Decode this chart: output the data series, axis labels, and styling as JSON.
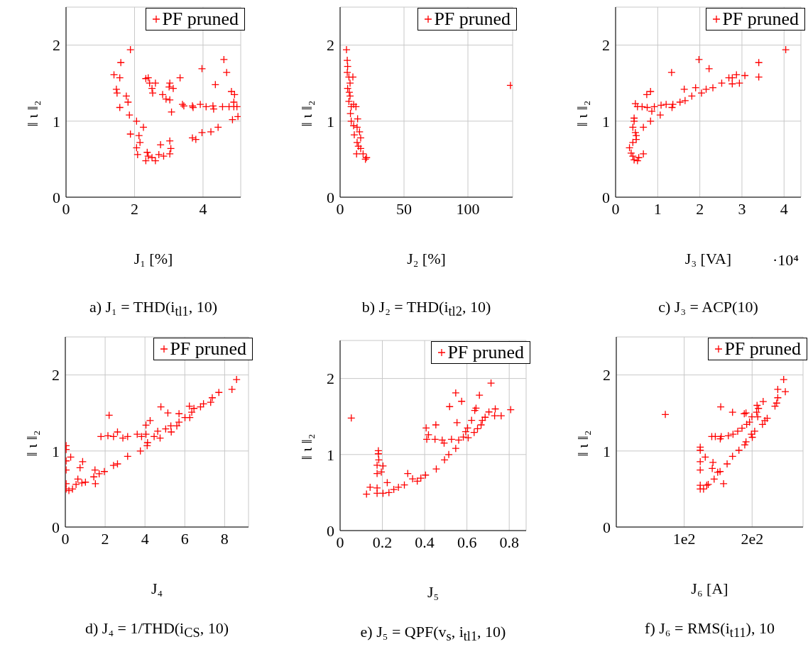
{
  "chart_data": [
    {
      "type": "scatter",
      "xlabel": "J₁ [%]",
      "ylabel": "‖ ι ‖₂",
      "xlim": [
        0,
        5.1
      ],
      "xticks": [
        0,
        2,
        4
      ],
      "ylim": [
        0,
        2.5
      ],
      "yticks": [
        0,
        1,
        2
      ],
      "grid": true,
      "legend": "top right",
      "marker": "cross",
      "annotations": [
        "a) J₁ = THD(i$_{tl1}$, 10)"
      ],
      "series": [
        {
          "name": "PF pruned",
          "color": "#ff0000",
          "x": [
            1.88,
            1.6,
            1.4,
            1.57,
            1.47,
            1.49,
            1.76,
            1.81,
            1.57,
            1.85,
            2.06,
            2.26,
            1.88,
            2.13,
            2.16,
            2.06,
            2.09,
            2.37,
            2.4,
            2.33,
            2.61,
            2.51,
            2.71,
            2.85,
            3.03,
            3.06,
            3.03,
            2.76,
            2.4,
            2.33,
            2.44,
            2.61,
            2.51,
            2.53,
            3.03,
            3.01,
            3.13,
            2.82,
            2.92,
            3.03,
            3.08,
            3.33,
            3.4,
            3.44,
            3.69,
            3.71,
            3.92,
            4.09,
            4.29,
            4.31,
            4.57,
            4.76,
            4.9,
            4.99,
            4.9,
            4.83,
            4.92,
            3.97,
            4.61,
            4.69,
            4.36,
            4.86,
            5.02,
            4.44,
            4.23,
            3.97,
            3.69,
            3.79
          ],
          "values": [
            1.94,
            1.77,
            1.61,
            1.57,
            1.42,
            1.37,
            1.33,
            1.25,
            1.18,
            1.08,
            1.0,
            0.92,
            0.83,
            0.81,
            0.72,
            0.65,
            0.56,
            0.59,
            0.54,
            0.48,
            0.48,
            0.52,
            0.56,
            0.54,
            0.57,
            0.64,
            0.74,
            0.69,
            1.57,
            1.56,
            1.5,
            1.5,
            1.43,
            1.37,
            1.5,
            1.45,
            1.43,
            1.35,
            1.29,
            1.28,
            1.12,
            1.57,
            1.22,
            1.2,
            1.2,
            1.18,
            1.22,
            1.19,
            1.2,
            1.16,
            1.19,
            1.19,
            1.19,
            1.19,
            1.25,
            1.39,
            1.35,
            1.69,
            1.81,
            1.64,
            1.48,
            1.02,
            1.06,
            0.92,
            0.86,
            0.85,
            0.78,
            0.76
          ]
        }
      ]
    },
    {
      "type": "scatter",
      "xlabel": "J₂ [%]",
      "ylabel": "‖ ι ‖₂",
      "xlim": [
        0,
        135
      ],
      "xticks": [
        0,
        50,
        100
      ],
      "ylim": [
        0,
        2.5
      ],
      "yticks": [
        0,
        1,
        2
      ],
      "grid": true,
      "legend": "top right",
      "marker": "cross",
      "annotations": [
        "b) J₂ = THD(i$_{tl2}$, 10)"
      ],
      "series": [
        {
          "name": "PF pruned",
          "color": "#ff0000",
          "x": [
            133.3,
            5.0,
            5.6,
            5.9,
            5.6,
            6.9,
            10.0,
            7.8,
            5.9,
            7.2,
            7.8,
            6.9,
            8.7,
            12.4,
            10.6,
            8.1,
            13.7,
            8.7,
            10.6,
            13.3,
            15.2,
            11.1,
            16.1,
            13.3,
            14.3,
            16.1,
            12.9,
            18.0,
            19.8,
            20.7
          ],
          "values": [
            1.47,
            1.94,
            1.8,
            1.72,
            1.64,
            1.58,
            1.58,
            1.5,
            1.43,
            1.38,
            1.33,
            1.26,
            1.19,
            1.19,
            1.22,
            1.1,
            1.03,
            1.0,
            0.94,
            0.92,
            0.86,
            0.82,
            0.78,
            0.72,
            0.67,
            0.64,
            0.57,
            0.57,
            0.5,
            0.52
          ]
        }
      ]
    },
    {
      "type": "scatter",
      "xlabel": "J₃ [VA]",
      "ylabel": "‖ ι ‖₂",
      "xlim": [
        0,
        4.4
      ],
      "xticks": [
        0,
        1,
        2,
        3,
        4
      ],
      "ylim": [
        0,
        2.5
      ],
      "yticks": [
        0,
        1,
        2
      ],
      "grid": true,
      "legend": "top right",
      "marker": "cross",
      "annotations": [
        "c) J₃ = ACP(10)",
        "·10⁴"
      ],
      "series": [
        {
          "name": "PF pruned",
          "color": "#ff0000",
          "x": [
            4.04,
            1.98,
            3.4,
            2.22,
            1.33,
            3.07,
            2.87,
            3.4,
            2.69,
            2.77,
            2.94,
            2.77,
            2.52,
            2.31,
            2.15,
            1.9,
            1.63,
            2.04,
            1.81,
            1.65,
            1.53,
            1.36,
            1.34,
            1.2,
            1.08,
            0.92,
            0.75,
            0.63,
            0.52,
            0.47,
            0.83,
            0.74,
            0.86,
            1.06,
            0.83,
            0.66,
            0.44,
            0.44,
            0.41,
            0.47,
            0.49,
            0.41,
            0.33,
            0.37,
            0.41,
            0.44,
            0.52,
            0.55,
            0.66,
            0.49
          ],
          "values": [
            1.94,
            1.81,
            1.77,
            1.69,
            1.64,
            1.6,
            1.61,
            1.58,
            1.57,
            1.57,
            1.5,
            1.49,
            1.5,
            1.44,
            1.42,
            1.44,
            1.42,
            1.37,
            1.33,
            1.27,
            1.25,
            1.22,
            1.18,
            1.22,
            1.21,
            1.19,
            1.18,
            1.19,
            1.19,
            1.23,
            1.39,
            1.35,
            1.13,
            1.08,
            1.0,
            0.92,
            1.04,
            1.0,
            0.92,
            0.85,
            0.81,
            0.72,
            0.65,
            0.58,
            0.54,
            0.49,
            0.48,
            0.52,
            0.57,
            0.76
          ]
        }
      ]
    },
    {
      "type": "scatter",
      "xlabel": "J₄",
      "ylabel": "‖ ι ‖₂",
      "xlim": [
        0,
        9.2
      ],
      "xticks": [
        0,
        2,
        4,
        6,
        8
      ],
      "ylim": [
        0,
        2.5
      ],
      "yticks": [
        0,
        1,
        2
      ],
      "grid": true,
      "legend": "top right",
      "marker": "cross",
      "annotations": [
        "d) J₄ = 1/THD(i$_{CS}$, 10)"
      ],
      "series": [
        {
          "name": "PF pruned",
          "color": "#ff0000",
          "x": [
            8.6,
            8.37,
            7.71,
            7.38,
            7.3,
            6.94,
            6.79,
            6.46,
            6.23,
            6.35,
            6.25,
            6.01,
            5.71,
            5.15,
            4.8,
            5.71,
            5.6,
            5.3,
            5.32,
            5.04,
            4.64,
            4.76,
            4.46,
            4.26,
            4.05,
            4.13,
            4.11,
            4.05,
            3.83,
            3.61,
            3.13,
            2.89,
            2.62,
            2.42,
            2.14,
            1.79,
            2.2,
            3.77,
            3.13,
            2.62,
            2.42,
            1.96,
            1.7,
            1.49,
            1.51,
            1.43,
            1.01,
            0.83,
            0.63,
            0.54,
            0.36,
            0.18,
            0.04,
            0.04,
            0.04,
            0.04,
            0.27,
            0.04,
            0.04,
            0.74,
            0.87
          ],
          "values": [
            1.94,
            1.81,
            1.77,
            1.7,
            1.64,
            1.62,
            1.58,
            1.56,
            1.59,
            1.51,
            1.44,
            1.44,
            1.49,
            1.5,
            1.58,
            1.38,
            1.33,
            1.33,
            1.25,
            1.29,
            1.26,
            1.17,
            1.19,
            1.4,
            1.34,
            1.11,
            1.07,
            1.22,
            1.19,
            1.22,
            1.19,
            1.17,
            1.25,
            1.19,
            1.2,
            1.19,
            1.47,
            1.0,
            0.93,
            0.83,
            0.81,
            0.73,
            0.7,
            0.75,
            0.57,
            0.66,
            0.59,
            0.58,
            0.63,
            0.56,
            0.5,
            0.48,
            0.5,
            0.57,
            0.75,
            0.87,
            0.92,
            1.02,
            1.07,
            0.78,
            0.86
          ]
        }
      ]
    },
    {
      "type": "scatter",
      "xlabel": "J₅",
      "ylabel": "‖ ι ‖₂",
      "xlim": [
        0,
        0.88
      ],
      "xticks": [
        0,
        0.2,
        0.4,
        0.6,
        0.8
      ],
      "ylim": [
        0,
        2.5
      ],
      "yticks": [
        0,
        1,
        2
      ],
      "grid": true,
      "legend": "top right",
      "marker": "cross",
      "annotations": [
        "e) J₅ = QPF(v$_{s}$, i$_{tl1}$, 10)"
      ],
      "series": [
        {
          "name": "PF pruned",
          "color": "#ff0000",
          "x": [
            0.053,
            0.714,
            0.547,
            0.659,
            0.575,
            0.518,
            0.643,
            0.637,
            0.734,
            0.807,
            0.704,
            0.731,
            0.762,
            0.686,
            0.673,
            0.667,
            0.65,
            0.634,
            0.622,
            0.603,
            0.594,
            0.553,
            0.453,
            0.407,
            0.418,
            0.41,
            0.449,
            0.483,
            0.492,
            0.527,
            0.561,
            0.583,
            0.606,
            0.547,
            0.514,
            0.494,
            0.455,
            0.404,
            0.382,
            0.365,
            0.343,
            0.32,
            0.304,
            0.276,
            0.254,
            0.231,
            0.203,
            0.175,
            0.125,
            0.142,
            0.175,
            0.223,
            0.181,
            0.181,
            0.183,
            0.175,
            0.203,
            0.195,
            0.175
          ],
          "values": [
            1.48,
            1.94,
            1.81,
            1.78,
            1.7,
            1.63,
            1.61,
            1.58,
            1.6,
            1.59,
            1.56,
            1.51,
            1.51,
            1.49,
            1.45,
            1.39,
            1.34,
            1.29,
            1.45,
            1.35,
            1.3,
            1.42,
            1.39,
            1.35,
            1.26,
            1.2,
            1.2,
            1.19,
            1.15,
            1.2,
            1.19,
            1.23,
            1.22,
            1.08,
            1.0,
            0.93,
            0.81,
            0.73,
            0.69,
            0.65,
            0.68,
            0.75,
            0.6,
            0.57,
            0.54,
            0.5,
            0.49,
            0.49,
            0.48,
            0.57,
            0.56,
            0.63,
            1.05,
            1.01,
            0.93,
            0.86,
            0.85,
            0.77,
            0.75
          ]
        }
      ]
    },
    {
      "type": "scatter",
      "xlabel": "J₆ [A]",
      "ylabel": "‖ ι ‖₂",
      "xlim": [
        0,
        275
      ],
      "xticks": [
        {
          "value": 100,
          "label": "1e2"
        },
        {
          "value": 200,
          "label": "2e2"
        }
      ],
      "ylim": [
        0,
        2.5
      ],
      "yticks": [
        0,
        1,
        2
      ],
      "grid": true,
      "legend": "top right",
      "marker": "cross",
      "annotations": [
        "f) J₆ = RMS(i$_{t11}$), 10"
      ],
      "series": [
        {
          "name": "PF pruned",
          "color": "#ff0000",
          "x": [
            72.2,
            246.5,
            237.8,
            248.9,
            237.8,
            236.1,
            233.7,
            216.3,
            207.3,
            209.4,
            206.6,
            208.3,
            199.7,
            191.0,
            188.5,
            171.2,
            153.8,
            222.2,
            218.8,
            215.3,
            203.8,
            198.9,
            200.3,
            191.0,
            189.2,
            180.6,
            171.2,
            163.2,
            152.8,
            144.1,
            135.4,
            128.5,
            158.0,
            142.4,
            141.3,
            131.0,
            123.6,
            123.6,
            123.6,
            123.6,
            123.6,
            123.6,
            196.2,
            192.0,
            185.1,
            178.8,
            171.9,
            165.0,
            154.5,
            145.8,
            140.6,
            153.1,
            149.3,
            133.2
          ],
          "values": [
            1.48,
            1.94,
            1.81,
            1.78,
            1.7,
            1.63,
            1.59,
            1.65,
            1.6,
            1.56,
            1.51,
            1.45,
            1.45,
            1.5,
            1.49,
            1.51,
            1.58,
            1.43,
            1.4,
            1.35,
            1.26,
            1.22,
            1.18,
            1.12,
            1.08,
            1.01,
            0.93,
            0.83,
            0.73,
            0.63,
            0.56,
            0.5,
            0.57,
            0.85,
            0.77,
            0.92,
            1.05,
            1.01,
            0.86,
            0.75,
            0.55,
            0.5,
            1.38,
            1.35,
            1.3,
            1.26,
            1.22,
            1.2,
            1.19,
            1.19,
            1.19,
            1.16,
            0.72,
            0.55
          ]
        }
      ]
    }
  ]
}
